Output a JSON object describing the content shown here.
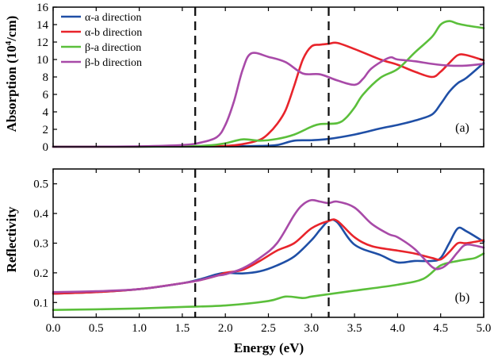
{
  "chart_data": [
    {
      "type": "line",
      "panel_label": "(a)",
      "ylabel_main": "Absorption (10",
      "ylabel_sup": "4",
      "ylabel_tail": "/cm)",
      "xlabel": "",
      "xlim": [
        0,
        5
      ],
      "ylim": [
        0,
        16
      ],
      "yticks": [
        0,
        2,
        4,
        6,
        8,
        10,
        12,
        14,
        16
      ],
      "ytick_labels": [
        "0",
        "2",
        "4",
        "6",
        "8",
        "10",
        "12",
        "14",
        "16"
      ],
      "vlines": [
        1.65,
        3.2
      ],
      "legend_position": "top-left",
      "series": [
        {
          "name": "α-a direction",
          "color": "#1f4fa6",
          "x": [
            0,
            0.5,
            1.0,
            1.5,
            2.0,
            2.4,
            2.6,
            2.8,
            3.0,
            3.2,
            3.5,
            3.8,
            4.0,
            4.2,
            4.4,
            4.5,
            4.6,
            4.7,
            4.8,
            5.0
          ],
          "y": [
            0,
            0,
            0.01,
            0.02,
            0.05,
            0.1,
            0.2,
            0.7,
            0.75,
            0.9,
            1.4,
            2.1,
            2.5,
            3.0,
            3.7,
            4.9,
            6.3,
            7.3,
            7.9,
            9.6
          ]
        },
        {
          "name": "α-b direction",
          "color": "#e8242b",
          "x": [
            0,
            1.0,
            1.5,
            2.0,
            2.2,
            2.4,
            2.5,
            2.6,
            2.7,
            2.8,
            2.9,
            3.0,
            3.1,
            3.2,
            3.3,
            3.5,
            3.8,
            4.0,
            4.2,
            4.4,
            4.5,
            4.6,
            4.7,
            4.8,
            5.0
          ],
          "y": [
            0,
            0.02,
            0.05,
            0.1,
            0.3,
            0.8,
            1.5,
            2.6,
            4.2,
            7.0,
            10.0,
            11.5,
            11.7,
            11.8,
            11.9,
            11.2,
            10.0,
            9.4,
            8.6,
            8.0,
            8.6,
            9.6,
            10.5,
            10.5,
            9.9
          ]
        },
        {
          "name": "β-a direction",
          "color": "#5bbf3b",
          "x": [
            0,
            1.0,
            1.5,
            1.8,
            2.0,
            2.2,
            2.4,
            2.6,
            2.8,
            3.0,
            3.1,
            3.3,
            3.4,
            3.5,
            3.6,
            3.8,
            4.0,
            4.2,
            4.4,
            4.5,
            4.6,
            4.7,
            4.8,
            5.0
          ],
          "y": [
            0,
            0.02,
            0.05,
            0.15,
            0.4,
            0.85,
            0.7,
            0.9,
            1.4,
            2.3,
            2.6,
            2.7,
            3.3,
            4.5,
            6.0,
            7.9,
            8.9,
            10.8,
            12.6,
            14.0,
            14.4,
            14.1,
            13.9,
            13.6
          ]
        },
        {
          "name": "β-b direction",
          "color": "#a84aa8",
          "x": [
            0,
            0.5,
            1.0,
            1.5,
            1.7,
            1.9,
            2.0,
            2.1,
            2.2,
            2.3,
            2.5,
            2.7,
            2.9,
            3.1,
            3.3,
            3.5,
            3.6,
            3.7,
            3.9,
            4.0,
            4.2,
            4.4,
            4.6,
            4.8,
            5.0
          ],
          "y": [
            0,
            0.01,
            0.05,
            0.2,
            0.45,
            1.1,
            2.5,
            5.2,
            8.8,
            10.7,
            10.3,
            9.7,
            8.4,
            8.3,
            7.6,
            7.1,
            7.8,
            9.0,
            10.2,
            10.0,
            9.8,
            9.5,
            9.3,
            9.3,
            9.5
          ]
        }
      ]
    },
    {
      "type": "line",
      "panel_label": "(b)",
      "ylabel": "Reflectivity",
      "xlabel": "Energy (eV)",
      "xlim": [
        0,
        5
      ],
      "ylim": [
        0.05,
        0.55
      ],
      "yticks": [
        0.1,
        0.2,
        0.3,
        0.4,
        0.5
      ],
      "ytick_labels": [
        "0.1",
        "0.2",
        "0.3",
        "0.4",
        "0.5"
      ],
      "xticks": [
        0,
        0.5,
        1.0,
        1.5,
        2.0,
        2.5,
        3.0,
        3.5,
        4.0,
        4.5,
        5.0
      ],
      "xtick_labels": [
        "0.0",
        "0.5",
        "1.0",
        "1.5",
        "2.0",
        "2.5",
        "3.0",
        "3.5",
        "4.0",
        "4.5",
        "5.0"
      ],
      "vlines": [
        1.65,
        3.2
      ],
      "series": [
        {
          "name": "α-a direction",
          "color": "#1f4fa6",
          "x": [
            0,
            0.5,
            1.0,
            1.5,
            1.7,
            1.9,
            2.0,
            2.2,
            2.4,
            2.6,
            2.8,
            3.0,
            3.1,
            3.2,
            3.3,
            3.5,
            3.8,
            4.0,
            4.2,
            4.4,
            4.5,
            4.6,
            4.7,
            4.8,
            5.0
          ],
          "y": [
            0.13,
            0.135,
            0.145,
            0.165,
            0.178,
            0.195,
            0.2,
            0.198,
            0.205,
            0.225,
            0.255,
            0.31,
            0.345,
            0.375,
            0.37,
            0.295,
            0.26,
            0.235,
            0.24,
            0.24,
            0.25,
            0.3,
            0.35,
            0.34,
            0.305
          ]
        },
        {
          "name": "α-b direction",
          "color": "#e8242b",
          "x": [
            0,
            0.5,
            1.0,
            1.5,
            1.7,
            1.9,
            2.0,
            2.2,
            2.4,
            2.6,
            2.8,
            3.0,
            3.2,
            3.3,
            3.5,
            3.7,
            4.0,
            4.2,
            4.4,
            4.5,
            4.6,
            4.7,
            4.8,
            5.0
          ],
          "y": [
            0.13,
            0.135,
            0.145,
            0.165,
            0.175,
            0.19,
            0.2,
            0.21,
            0.24,
            0.275,
            0.3,
            0.35,
            0.375,
            0.375,
            0.32,
            0.29,
            0.275,
            0.265,
            0.25,
            0.245,
            0.27,
            0.3,
            0.3,
            0.31
          ]
        },
        {
          "name": "β-a direction",
          "color": "#5bbf3b",
          "x": [
            0,
            0.5,
            1.0,
            1.5,
            2.0,
            2.5,
            2.7,
            2.9,
            3.0,
            3.2,
            3.5,
            4.0,
            4.3,
            4.5,
            4.7,
            4.8,
            4.9,
            5.0
          ],
          "y": [
            0.075,
            0.077,
            0.08,
            0.085,
            0.09,
            0.105,
            0.12,
            0.115,
            0.12,
            0.128,
            0.14,
            0.16,
            0.18,
            0.225,
            0.24,
            0.245,
            0.25,
            0.265
          ]
        },
        {
          "name": "β-b direction",
          "color": "#a84aa8",
          "x": [
            0,
            0.5,
            1.0,
            1.5,
            1.7,
            1.9,
            2.0,
            2.2,
            2.4,
            2.6,
            2.8,
            2.9,
            3.0,
            3.1,
            3.2,
            3.3,
            3.5,
            3.7,
            3.9,
            4.0,
            4.2,
            4.4,
            4.5,
            4.6,
            4.7,
            4.8,
            5.0
          ],
          "y": [
            0.135,
            0.138,
            0.145,
            0.165,
            0.175,
            0.19,
            0.195,
            0.215,
            0.25,
            0.3,
            0.395,
            0.43,
            0.445,
            0.44,
            0.435,
            0.44,
            0.42,
            0.365,
            0.33,
            0.32,
            0.28,
            0.22,
            0.215,
            0.235,
            0.27,
            0.295,
            0.285
          ]
        }
      ]
    }
  ]
}
